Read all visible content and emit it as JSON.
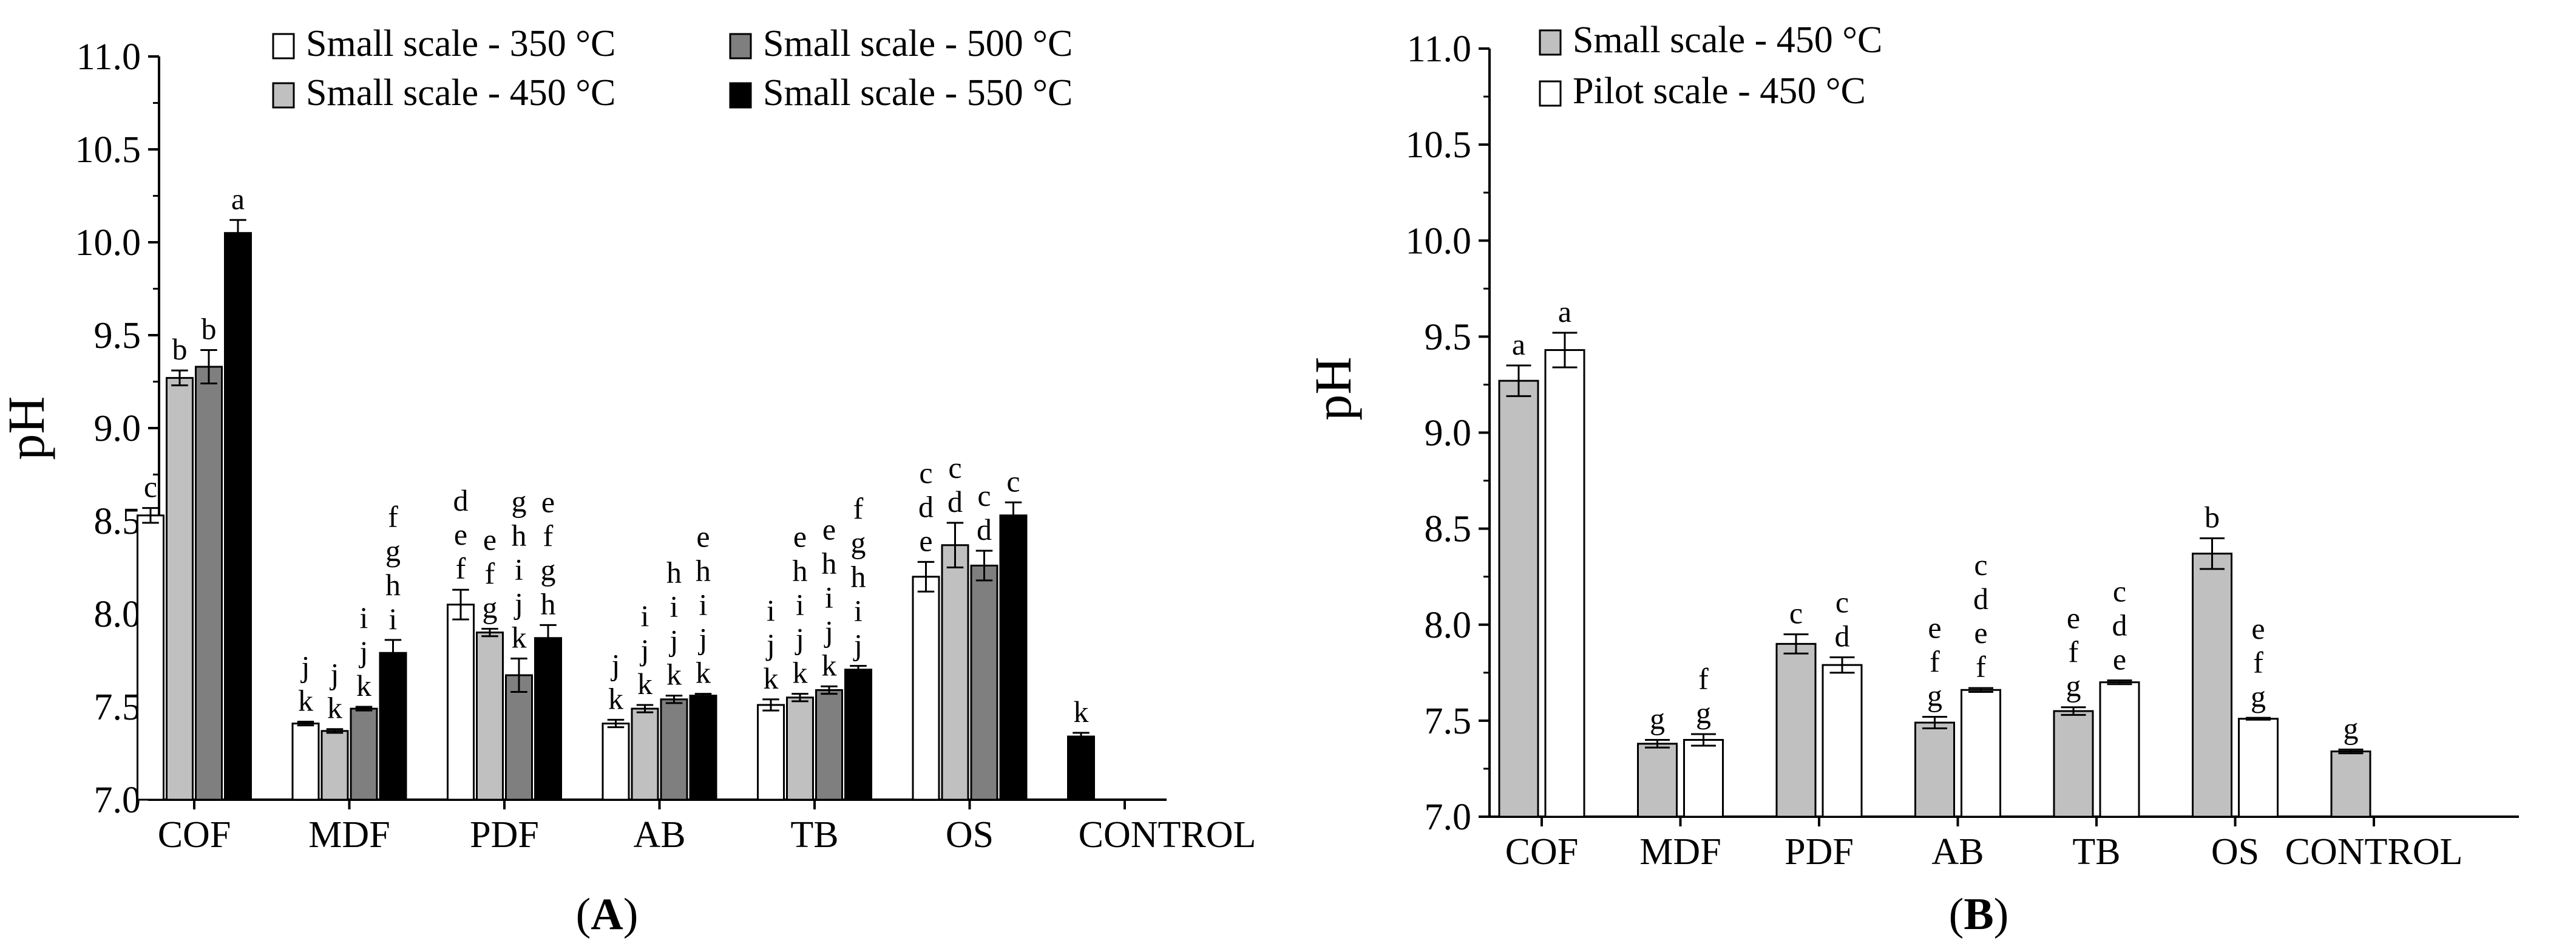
{
  "chart_data": [
    {
      "type": "bar",
      "panel_label": "A",
      "ylabel": "pH",
      "xlabel": "",
      "ylim": [
        7.0,
        11.0
      ],
      "yticks": [
        "7.0",
        "7.5",
        "8.0",
        "8.5",
        "9.0",
        "9.5",
        "10.0",
        "10.5",
        "11.0"
      ],
      "grid": false,
      "legend_position": "top",
      "categories": [
        "COF",
        "MDF",
        "PDF",
        "AB",
        "TB",
        "OS",
        "CONTROL"
      ],
      "series": [
        {
          "name": "Small scale - 350 °C",
          "color": "#ffffff",
          "values": [
            8.53,
            7.41,
            8.05,
            7.41,
            7.51,
            8.2,
            null
          ],
          "errors": [
            0.04,
            0.01,
            0.08,
            0.02,
            0.03,
            0.08,
            null
          ],
          "labels": [
            [
              "c"
            ],
            [
              "j",
              "k"
            ],
            [
              "d",
              "e",
              "f"
            ],
            [
              "j",
              "k"
            ],
            [
              "i",
              "j",
              "k"
            ],
            [
              "c",
              "d",
              "e"
            ],
            []
          ]
        },
        {
          "name": "Small scale - 450 °C",
          "color": "#c0c0c0",
          "values": [
            9.27,
            7.37,
            7.9,
            7.49,
            7.55,
            8.37,
            null
          ],
          "errors": [
            0.04,
            0.01,
            0.02,
            0.02,
            0.02,
            0.12,
            null
          ],
          "labels": [
            [
              "b"
            ],
            [
              "j",
              "k"
            ],
            [
              "e",
              "f",
              "g"
            ],
            [
              "i",
              "j",
              "k"
            ],
            [
              "e",
              "h",
              "i",
              "j",
              "k"
            ],
            [
              "c",
              "d"
            ],
            []
          ]
        },
        {
          "name": "Small scale - 500 °C",
          "color": "#7f7f7f",
          "values": [
            9.33,
            7.49,
            7.67,
            7.54,
            7.59,
            8.26,
            null
          ],
          "errors": [
            0.09,
            0.01,
            0.09,
            0.02,
            0.02,
            0.08,
            null
          ],
          "labels": [
            [
              "b"
            ],
            [
              "i",
              "j",
              "k"
            ],
            [
              "g",
              "h",
              "i",
              "j",
              "k"
            ],
            [
              "h",
              "i",
              "j",
              "k"
            ],
            [
              "e",
              "h",
              "i",
              "j",
              "k"
            ],
            [
              "c",
              "d"
            ],
            []
          ]
        },
        {
          "name": "Small scale - 550 °C",
          "color": "#000000",
          "values": [
            10.05,
            7.79,
            7.87,
            7.56,
            7.7,
            8.53,
            7.34
          ],
          "errors": [
            0.07,
            0.07,
            0.07,
            0.01,
            0.02,
            0.07,
            0.02
          ],
          "labels": [
            [
              "a"
            ],
            [
              "f",
              "g",
              "h",
              "i"
            ],
            [
              "e",
              "f",
              "g",
              "h"
            ],
            [
              "e",
              "h",
              "i",
              "j",
              "k"
            ],
            [
              "f",
              "g",
              "h",
              "i",
              "j"
            ],
            [
              "c"
            ],
            [
              "k"
            ]
          ]
        }
      ]
    },
    {
      "type": "bar",
      "panel_label": "B",
      "ylabel": "pH",
      "xlabel": "",
      "ylim": [
        7.0,
        11.0
      ],
      "yticks": [
        "7.0",
        "7.5",
        "8.0",
        "8.5",
        "9.0",
        "9.5",
        "10.0",
        "10.5",
        "11.0"
      ],
      "grid": false,
      "legend_position": "top-left",
      "categories": [
        "COF",
        "MDF",
        "PDF",
        "AB",
        "TB",
        "OS",
        "CONTROL"
      ],
      "series": [
        {
          "name": "Small scale - 450 °C",
          "color": "#c0c0c0",
          "values": [
            9.27,
            7.38,
            7.9,
            7.49,
            7.55,
            8.37,
            7.34
          ],
          "errors": [
            0.08,
            0.02,
            0.05,
            0.03,
            0.02,
            0.08,
            0.01
          ],
          "labels": [
            [
              "a"
            ],
            [
              "g"
            ],
            [
              "c"
            ],
            [
              "e",
              "f",
              "g"
            ],
            [
              "e",
              "f",
              "g"
            ],
            [
              "b"
            ],
            [
              "g"
            ]
          ]
        },
        {
          "name": "Pilot scale - 450 °C",
          "color": "#ffffff",
          "values": [
            9.43,
            7.4,
            7.79,
            7.66,
            7.7,
            7.51,
            null
          ],
          "errors": [
            0.09,
            0.03,
            0.04,
            0.01,
            0.01,
            0.005,
            null
          ],
          "labels": [
            [
              "a"
            ],
            [
              "f",
              "g"
            ],
            [
              "c",
              "d"
            ],
            [
              "c",
              "d",
              "e",
              "f"
            ],
            [
              "c",
              "d",
              "e"
            ],
            [
              "e",
              "f",
              "g"
            ],
            []
          ]
        }
      ]
    }
  ]
}
